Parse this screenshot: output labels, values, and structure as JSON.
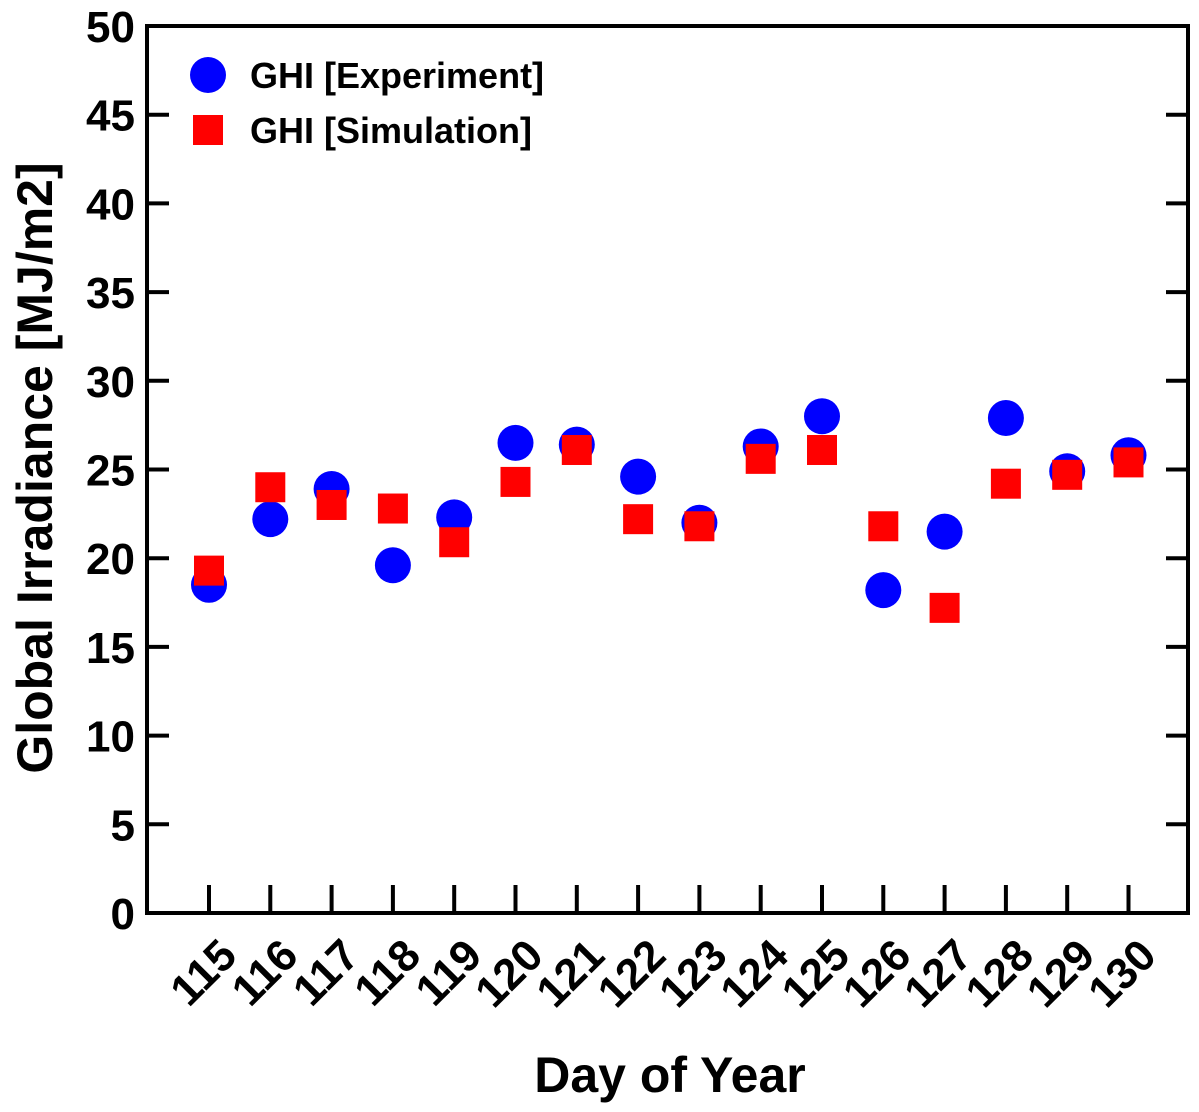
{
  "chart_data": {
    "type": "scatter",
    "title": "",
    "xlabel": "Day of Year",
    "ylabel": "Global Irradiance  [MJ/m2]",
    "categories": [
      "115",
      "116",
      "117",
      "118",
      "119",
      "120",
      "121",
      "122",
      "123",
      "124",
      "125",
      "126",
      "127",
      "128",
      "129",
      "130"
    ],
    "ylim": [
      0,
      50
    ],
    "yticks": [
      0,
      5,
      10,
      15,
      20,
      25,
      30,
      35,
      40,
      45,
      50
    ],
    "grid": false,
    "legend_position": "top-left",
    "series": [
      {
        "name": "GHI [Experiment]",
        "marker": "circle",
        "color": "#0000ff",
        "values": [
          18.5,
          22.2,
          23.9,
          19.6,
          22.3,
          26.5,
          26.4,
          24.6,
          22.0,
          26.3,
          28.0,
          18.2,
          21.5,
          27.9,
          24.9,
          25.8
        ]
      },
      {
        "name": "GHI [Simulation]",
        "marker": "square",
        "color": "#ff0000",
        "values": [
          19.3,
          24.0,
          23.0,
          22.8,
          20.9,
          24.3,
          26.1,
          22.2,
          21.8,
          25.6,
          26.1,
          21.8,
          17.2,
          24.2,
          24.7,
          25.4
        ]
      }
    ]
  }
}
